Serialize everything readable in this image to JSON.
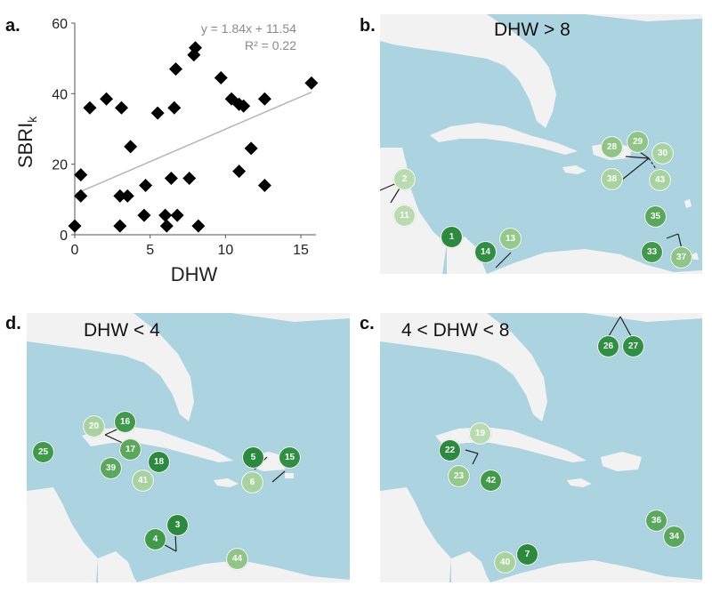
{
  "panel_labels": {
    "a": "a.",
    "b": "b.",
    "c": "c.",
    "d": "d."
  },
  "chart_data": {
    "type": "scatter",
    "xlabel": "DHW",
    "ylabel": "SBRI",
    "ylabel_subscript": "k",
    "xlim": [
      0,
      16
    ],
    "ylim": [
      0,
      60
    ],
    "xticks": [
      "0",
      "5",
      "10",
      "15"
    ],
    "yticks": [
      "0",
      "20",
      "40",
      "60"
    ],
    "equation": "y = 1.84x + 11.54",
    "r2": "R² = 0.22",
    "trendline": {
      "slope": 1.84,
      "intercept": 11.54
    },
    "points": [
      {
        "x": 0.0,
        "y": 2.5
      },
      {
        "x": 0.4,
        "y": 17
      },
      {
        "x": 0.4,
        "y": 11
      },
      {
        "x": 1.0,
        "y": 36
      },
      {
        "x": 2.1,
        "y": 38.5
      },
      {
        "x": 3.0,
        "y": 11
      },
      {
        "x": 3.0,
        "y": 2.5
      },
      {
        "x": 3.1,
        "y": 36
      },
      {
        "x": 3.5,
        "y": 11
      },
      {
        "x": 3.7,
        "y": 25
      },
      {
        "x": 4.6,
        "y": 5.5
      },
      {
        "x": 4.7,
        "y": 14
      },
      {
        "x": 5.5,
        "y": 34.5
      },
      {
        "x": 6.0,
        "y": 5.5
      },
      {
        "x": 6.1,
        "y": 2.5
      },
      {
        "x": 6.4,
        "y": 16
      },
      {
        "x": 6.6,
        "y": 36
      },
      {
        "x": 6.7,
        "y": 47
      },
      {
        "x": 6.8,
        "y": 5.5
      },
      {
        "x": 7.6,
        "y": 16
      },
      {
        "x": 7.9,
        "y": 51
      },
      {
        "x": 8.0,
        "y": 53
      },
      {
        "x": 8.2,
        "y": 2.5
      },
      {
        "x": 9.7,
        "y": 44.5
      },
      {
        "x": 10.4,
        "y": 38.5
      },
      {
        "x": 10.9,
        "y": 37
      },
      {
        "x": 10.9,
        "y": 18
      },
      {
        "x": 11.2,
        "y": 36.5
      },
      {
        "x": 11.7,
        "y": 24.5
      },
      {
        "x": 12.6,
        "y": 38.5
      },
      {
        "x": 12.6,
        "y": 14
      },
      {
        "x": 15.7,
        "y": 43
      }
    ]
  },
  "maps": {
    "b": {
      "title": "DHW > 8",
      "markers": [
        {
          "label": "2",
          "color": "#b9dbb0"
        },
        {
          "label": "11",
          "color": "#b9dbb0"
        },
        {
          "label": "1",
          "color": "#2b8a3e"
        },
        {
          "label": "14",
          "color": "#2f8f42"
        },
        {
          "label": "13",
          "color": "#93c98a"
        },
        {
          "label": "28",
          "color": "#8fc586"
        },
        {
          "label": "29",
          "color": "#8fc586"
        },
        {
          "label": "30",
          "color": "#a7d49e"
        },
        {
          "label": "38",
          "color": "#a7d49e"
        },
        {
          "label": "43",
          "color": "#a7d49e"
        },
        {
          "label": "35",
          "color": "#5aa85c"
        },
        {
          "label": "33",
          "color": "#3f9a4a"
        },
        {
          "label": "37",
          "color": "#8fc586"
        }
      ]
    },
    "c": {
      "title": "4 < DHW < 8",
      "markers": [
        {
          "label": "26",
          "color": "#2f8f42"
        },
        {
          "label": "27",
          "color": "#2f8f42"
        },
        {
          "label": "19",
          "color": "#b9dbb0"
        },
        {
          "label": "22",
          "color": "#2b8a3e"
        },
        {
          "label": "23",
          "color": "#93c98a"
        },
        {
          "label": "42",
          "color": "#3f9a4a"
        },
        {
          "label": "36",
          "color": "#5aa85c"
        },
        {
          "label": "34",
          "color": "#5aa85c"
        },
        {
          "label": "40",
          "color": "#a7d49e"
        },
        {
          "label": "7",
          "color": "#2b8a3e"
        }
      ]
    },
    "d": {
      "title": "DHW < 4",
      "markers": [
        {
          "label": "16",
          "color": "#3f9a4a"
        },
        {
          "label": "20",
          "color": "#a7d49e"
        },
        {
          "label": "17",
          "color": "#5aa85c"
        },
        {
          "label": "25",
          "color": "#3f9a4a"
        },
        {
          "label": "39",
          "color": "#5aa85c"
        },
        {
          "label": "41",
          "color": "#a7d49e"
        },
        {
          "label": "18",
          "color": "#2b8a3e"
        },
        {
          "label": "5",
          "color": "#2b8a3e"
        },
        {
          "label": "15",
          "color": "#2f8f42"
        },
        {
          "label": "6",
          "color": "#a7d49e"
        },
        {
          "label": "3",
          "color": "#2b8a3e"
        },
        {
          "label": "4",
          "color": "#3f9a4a"
        },
        {
          "label": "44",
          "color": "#8fc586"
        }
      ]
    }
  }
}
